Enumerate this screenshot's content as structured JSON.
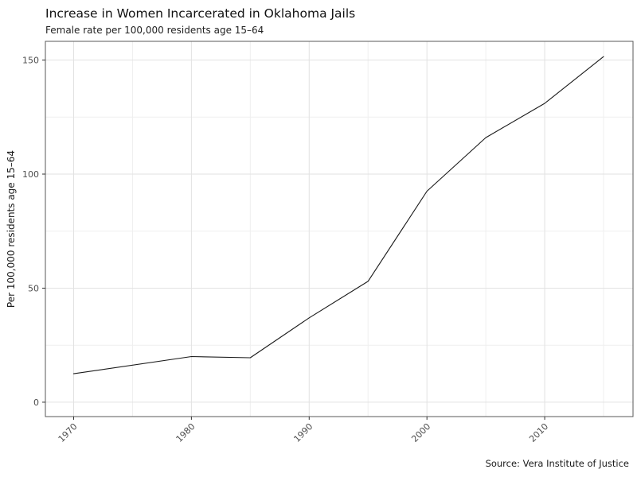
{
  "page": {
    "title": "Increase in Women Incarcerated in Oklahoma Jails",
    "subtitle": "Female rate per 100,000 residents age 15–64",
    "source": "Source: Vera Institute of Justice"
  },
  "chart_data": {
    "type": "line",
    "title": "Increase in Women Incarcerated in Oklahoma Jails",
    "subtitle": "Female rate per 100,000 residents age 15–64",
    "xlabel": "",
    "ylabel": "Per 100,000 residents age 15–64",
    "source": "Source: Vera Institute of Justice",
    "x": [
      1970,
      1980,
      1985,
      1990,
      1995,
      2000,
      2005,
      2010,
      2015
    ],
    "values": [
      12.5,
      20,
      19.5,
      37,
      53,
      92.5,
      116,
      131,
      151.5
    ],
    "x_ticks": [
      1970,
      1980,
      1990,
      2000,
      2010
    ],
    "x_minor": [
      1975,
      1985,
      1995,
      2005,
      2015
    ],
    "y_ticks": [
      0,
      50,
      100,
      150
    ],
    "y_minor": [
      25,
      75,
      125
    ],
    "xlim": [
      1967.6,
      2017.5
    ],
    "ylim": [
      -6.3,
      158.2
    ],
    "grid": true,
    "legend_position": "none",
    "colors": {
      "line": "#1a1a1a",
      "grid_major": "#e2e2e2",
      "grid_minor": "#efefef",
      "border": "#595959",
      "tick": "#333333",
      "tick_label": "#4d4d4d",
      "background": "#ffffff"
    }
  }
}
